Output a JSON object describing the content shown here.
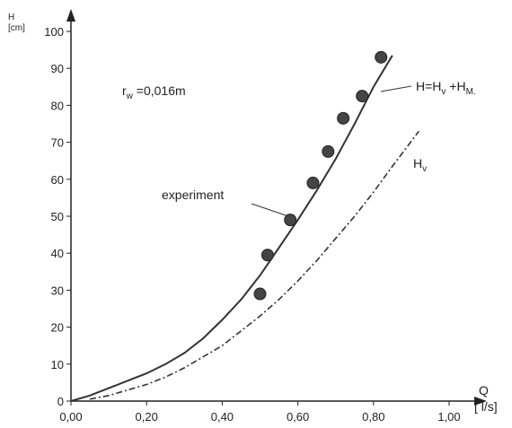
{
  "chart_data": {
    "type": "scatter",
    "xlabel": "Q",
    "xunit": "[ l/s]",
    "ylabel": "H",
    "yunit": "[cm]",
    "xlim": [
      0,
      1.0
    ],
    "ylim": [
      0,
      100
    ],
    "xticks": [
      "0,00",
      "0,20",
      "0,40",
      "0,60",
      "0,80",
      "1,00"
    ],
    "yticks": [
      "0",
      "10",
      "20",
      "30",
      "40",
      "50",
      "60",
      "70",
      "80",
      "90",
      "100"
    ],
    "grid": false,
    "annotations": {
      "radius": {
        "main": "r",
        "sub": "w",
        "rest": " =0,016m"
      },
      "experiment": "experiment",
      "total": {
        "t1": "H=H",
        "s1": "v",
        "t2": " +H",
        "s2": "M."
      },
      "hv": {
        "main": "H",
        "sub": "v"
      }
    },
    "series": [
      {
        "kind": "points",
        "values": [
          [
            0.5,
            29
          ],
          [
            0.52,
            39.5
          ],
          [
            0.58,
            49
          ],
          [
            0.64,
            59
          ],
          [
            0.68,
            67.5
          ],
          [
            0.72,
            76.5
          ],
          [
            0.77,
            82.5
          ],
          [
            0.82,
            93
          ]
        ]
      },
      {
        "kind": "solid-line",
        "values": [
          [
            0.0,
            0
          ],
          [
            0.05,
            1.5
          ],
          [
            0.1,
            3.5
          ],
          [
            0.15,
            5.5
          ],
          [
            0.2,
            7.5
          ],
          [
            0.25,
            10
          ],
          [
            0.3,
            13
          ],
          [
            0.35,
            17
          ],
          [
            0.4,
            22
          ],
          [
            0.45,
            27.5
          ],
          [
            0.5,
            34
          ],
          [
            0.55,
            41.5
          ],
          [
            0.6,
            49
          ],
          [
            0.65,
            57
          ],
          [
            0.7,
            65.5
          ],
          [
            0.75,
            75
          ],
          [
            0.8,
            85
          ],
          [
            0.85,
            93.5
          ]
        ]
      },
      {
        "kind": "dashdot-line",
        "values": [
          [
            0.05,
            0.5
          ],
          [
            0.1,
            1.5
          ],
          [
            0.15,
            3
          ],
          [
            0.2,
            4.5
          ],
          [
            0.25,
            6.5
          ],
          [
            0.3,
            9
          ],
          [
            0.35,
            12
          ],
          [
            0.4,
            15
          ],
          [
            0.45,
            19
          ],
          [
            0.5,
            23
          ],
          [
            0.55,
            27.5
          ],
          [
            0.6,
            32.5
          ],
          [
            0.65,
            38
          ],
          [
            0.7,
            44
          ],
          [
            0.75,
            50
          ],
          [
            0.8,
            56.5
          ],
          [
            0.85,
            63.5
          ],
          [
            0.92,
            73
          ]
        ]
      }
    ]
  }
}
